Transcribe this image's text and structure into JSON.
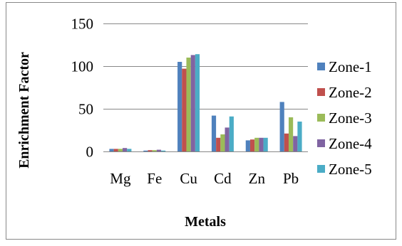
{
  "chart_data": {
    "type": "bar",
    "title": "",
    "xlabel": "Metals",
    "ylabel": "Enrichment Factor",
    "categories": [
      "Mg",
      "Fe",
      "Cu",
      "Cd",
      "Zn",
      "Pb"
    ],
    "ylim": [
      0,
      150
    ],
    "yticks": [
      0,
      50,
      100,
      150
    ],
    "grid": true,
    "legend_position": "right",
    "series": [
      {
        "name": "Zone-1",
        "color": "#4F81BD",
        "values": [
          3,
          1,
          105,
          42,
          13,
          58
        ]
      },
      {
        "name": "Zone-2",
        "color": "#C0504D",
        "values": [
          3,
          1.5,
          97,
          16,
          14,
          21
        ]
      },
      {
        "name": "Zone-3",
        "color": "#9BBB59",
        "values": [
          3,
          1.5,
          110,
          20,
          16,
          40
        ]
      },
      {
        "name": "Zone-4",
        "color": "#8064A2",
        "values": [
          4,
          2,
          113,
          28,
          16,
          18
        ]
      },
      {
        "name": "Zone-5",
        "color": "#4BACC6",
        "values": [
          3,
          1,
          114,
          41,
          16,
          35
        ]
      }
    ]
  }
}
